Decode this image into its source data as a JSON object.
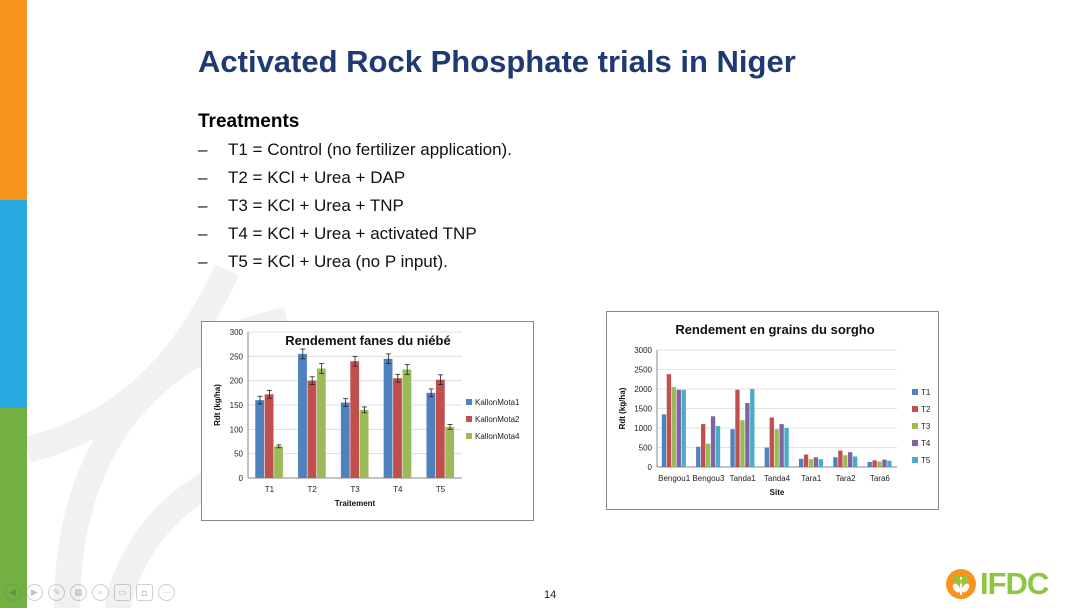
{
  "slide": {
    "title": "Activated Rock Phosphate trials in Niger",
    "subheading": "Treatments",
    "treatments": [
      "T1 = Control (no fertilizer application).",
      "T2 = KCl + Urea + DAP",
      "T3 = KCl + Urea + TNP",
      "T4 = KCl + Urea + activated TNP",
      "T5 = KCl + Urea (no P input)."
    ],
    "page_number": "14",
    "logo_text": "IFDC"
  },
  "colors": {
    "stripe_orange": "#f7941d",
    "stripe_blue": "#29abe2",
    "stripe_green": "#72b043",
    "title_blue": "#1f3a73",
    "logo_green": "#8dc63f"
  },
  "chart_data": [
    {
      "type": "bar",
      "title": "Rendement fanes du niébé",
      "xlabel": "Traitement",
      "ylabel": "Rdt (kg/ha)",
      "ylim": [
        0,
        300
      ],
      "yticks": [
        0,
        50,
        100,
        150,
        200,
        250,
        300
      ],
      "categories": [
        "T1",
        "T2",
        "T3",
        "T4",
        "T5"
      ],
      "series": [
        {
          "name": "KallonMota1",
          "color": "#4f81bd",
          "values": [
            160,
            255,
            155,
            245,
            175
          ],
          "errors": [
            8,
            10,
            8,
            10,
            8
          ]
        },
        {
          "name": "KallonMota2",
          "color": "#c0504d",
          "values": [
            172,
            200,
            240,
            205,
            202
          ],
          "errors": [
            8,
            8,
            10,
            8,
            10
          ]
        },
        {
          "name": "KallonMota4",
          "color": "#9bbb59",
          "values": [
            65,
            225,
            140,
            223,
            105
          ],
          "errors": [
            3,
            10,
            6,
            10,
            5
          ]
        }
      ],
      "legend": "right"
    },
    {
      "type": "bar",
      "title": "Rendement en grains du sorgho",
      "xlabel": "Site",
      "ylabel": "Rdt (kg/ha)",
      "ylim": [
        0,
        3000
      ],
      "yticks": [
        0,
        500,
        1000,
        1500,
        2000,
        2500,
        3000
      ],
      "categories": [
        "Bengou1",
        "Bengou3",
        "Tanda1",
        "Tanda4",
        "Tara1",
        "Tara2",
        "Tara6"
      ],
      "series": [
        {
          "name": "T1",
          "color": "#4f81bd",
          "values": [
            1350,
            520,
            970,
            500,
            210,
            250,
            130
          ]
        },
        {
          "name": "T2",
          "color": "#c0504d",
          "values": [
            2380,
            1100,
            1980,
            1270,
            320,
            420,
            170
          ]
        },
        {
          "name": "T3",
          "color": "#9bbb59",
          "values": [
            2050,
            600,
            1200,
            970,
            200,
            300,
            140
          ]
        },
        {
          "name": "T4",
          "color": "#8064a2",
          "values": [
            1980,
            1300,
            1640,
            1100,
            250,
            380,
            190
          ]
        },
        {
          "name": "T5",
          "color": "#4bacc6",
          "values": [
            1980,
            1050,
            2000,
            1000,
            200,
            270,
            160
          ]
        }
      ],
      "legend": "right"
    }
  ]
}
